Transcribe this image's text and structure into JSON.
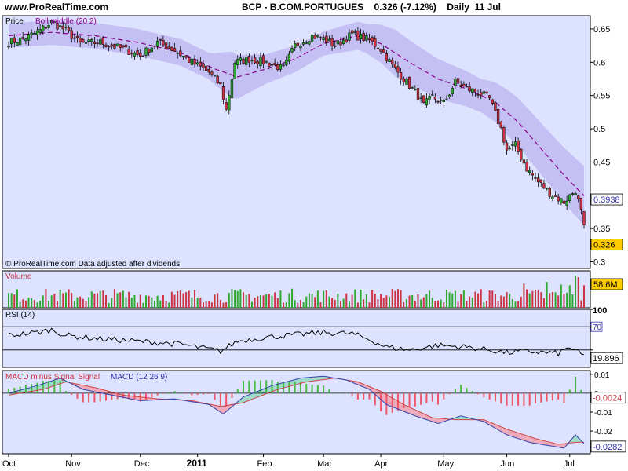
{
  "header": {
    "site": "www.ProRealTime.com",
    "title": "BCP - B.COM.PORTUGUES",
    "quote": "0.326 (-7.12%)",
    "period": "Daily",
    "date": "11 Jul"
  },
  "colors": {
    "panel_bg": "#dde3ff",
    "band_fill": "#c4c0f4",
    "up": "#2ea82e",
    "down": "#cc3344",
    "boll_middle": "#880088",
    "value_box": "#ffcc00",
    "macd_line": "#3344aa",
    "signal_line": "#cc4444",
    "hist_up": "#44bb44",
    "hist_down": "#ee5566"
  },
  "chart_data": [
    {
      "type": "candlestick",
      "panel": "price",
      "legend": [
        "Price",
        "Boll middle (20 2)"
      ],
      "footnote": "© ProRealTime.com  Data adjusted after dividends",
      "y_ticks": [
        0.65,
        0.6,
        0.55,
        0.5,
        0.45,
        0.35,
        0.3
      ],
      "y_tick_labels": [
        "0.65",
        "0.6",
        "0.55",
        "0.5",
        "0.45",
        "0.35",
        "0.3"
      ],
      "ylim": [
        0.29,
        0.67
      ],
      "value_tags": [
        {
          "value": 0.3938,
          "label": "0.3938"
        },
        {
          "value": 0.326,
          "label": "0.326"
        }
      ],
      "x_labels": [
        "Oct",
        "Nov",
        "Dec",
        "2011",
        "Feb",
        "Mar",
        "Apr",
        "May",
        "Jun",
        "Jul"
      ],
      "x_label_pos": [
        0,
        22,
        46,
        66,
        89,
        110,
        130,
        152,
        174,
        196
      ],
      "x_bold_label": "2011",
      "num_bars": 202,
      "close_keypoints": [
        [
          0,
          0.63
        ],
        [
          5,
          0.635
        ],
        [
          10,
          0.645
        ],
        [
          15,
          0.66
        ],
        [
          20,
          0.648
        ],
        [
          25,
          0.628
        ],
        [
          32,
          0.63
        ],
        [
          40,
          0.62
        ],
        [
          46,
          0.61
        ],
        [
          52,
          0.63
        ],
        [
          58,
          0.618
        ],
        [
          64,
          0.6
        ],
        [
          70,
          0.585
        ],
        [
          74,
          0.565
        ],
        [
          76,
          0.528
        ],
        [
          79,
          0.6
        ],
        [
          84,
          0.605
        ],
        [
          90,
          0.6
        ],
        [
          96,
          0.59
        ],
        [
          100,
          0.625
        ],
        [
          106,
          0.64
        ],
        [
          110,
          0.635
        ],
        [
          114,
          0.625
        ],
        [
          120,
          0.642
        ],
        [
          126,
          0.633
        ],
        [
          130,
          0.62
        ],
        [
          134,
          0.595
        ],
        [
          138,
          0.575
        ],
        [
          142,
          0.555
        ],
        [
          145,
          0.535
        ],
        [
          148,
          0.548
        ],
        [
          152,
          0.538
        ],
        [
          156,
          0.57
        ],
        [
          160,
          0.56
        ],
        [
          164,
          0.555
        ],
        [
          168,
          0.545
        ],
        [
          172,
          0.5
        ],
        [
          174,
          0.468
        ],
        [
          177,
          0.475
        ],
        [
          181,
          0.44
        ],
        [
          185,
          0.42
        ],
        [
          190,
          0.4
        ],
        [
          194,
          0.39
        ],
        [
          198,
          0.408
        ],
        [
          200,
          0.375
        ],
        [
          202,
          0.326
        ]
      ],
      "boll_keypoints": [
        [
          0,
          0.64
        ],
        [
          15,
          0.645
        ],
        [
          30,
          0.64
        ],
        [
          45,
          0.63
        ],
        [
          60,
          0.615
        ],
        [
          72,
          0.59
        ],
        [
          80,
          0.578
        ],
        [
          90,
          0.59
        ],
        [
          100,
          0.605
        ],
        [
          110,
          0.628
        ],
        [
          122,
          0.64
        ],
        [
          130,
          0.628
        ],
        [
          140,
          0.6
        ],
        [
          150,
          0.575
        ],
        [
          160,
          0.56
        ],
        [
          170,
          0.54
        ],
        [
          178,
          0.51
        ],
        [
          186,
          0.47
        ],
        [
          194,
          0.43
        ],
        [
          202,
          0.395
        ]
      ],
      "band_width_keypoints": [
        [
          0,
          0.018
        ],
        [
          40,
          0.02
        ],
        [
          70,
          0.02
        ],
        [
          78,
          0.035
        ],
        [
          90,
          0.022
        ],
        [
          110,
          0.018
        ],
        [
          125,
          0.022
        ],
        [
          135,
          0.035
        ],
        [
          150,
          0.03
        ],
        [
          165,
          0.025
        ],
        [
          175,
          0.035
        ],
        [
          190,
          0.04
        ],
        [
          202,
          0.045
        ]
      ]
    },
    {
      "type": "bar",
      "panel": "volume",
      "title": "Volume",
      "last_value_label": "58.6M",
      "spike_bars": [
        [
          180,
          0.75
        ],
        [
          188,
          0.8
        ],
        [
          193,
          0.72
        ],
        [
          196,
          0.7
        ],
        [
          198,
          1.0
        ],
        [
          199,
          0.95
        ],
        [
          201,
          0.7
        ]
      ]
    },
    {
      "type": "line",
      "panel": "rsi",
      "title": "RSI (14)",
      "y_ticks": [
        100,
        70,
        30
      ],
      "y_tick_labels": [
        "100",
        "70",
        ""
      ],
      "ylim": [
        0,
        100
      ],
      "reference_lines": [
        70,
        30
      ],
      "last_value_label": "19.896",
      "keypoints": [
        [
          0,
          55
        ],
        [
          10,
          60
        ],
        [
          15,
          65
        ],
        [
          20,
          55
        ],
        [
          30,
          50
        ],
        [
          45,
          45
        ],
        [
          60,
          40
        ],
        [
          74,
          28
        ],
        [
          80,
          45
        ],
        [
          90,
          52
        ],
        [
          100,
          56
        ],
        [
          110,
          60
        ],
        [
          120,
          58
        ],
        [
          126,
          48
        ],
        [
          132,
          35
        ],
        [
          140,
          30
        ],
        [
          150,
          38
        ],
        [
          160,
          35
        ],
        [
          168,
          30
        ],
        [
          174,
          25
        ],
        [
          180,
          28
        ],
        [
          186,
          26
        ],
        [
          192,
          24
        ],
        [
          196,
          35
        ],
        [
          200,
          22
        ],
        [
          202,
          20
        ]
      ]
    },
    {
      "type": "line",
      "panel": "macd",
      "title": "MACD minus Signal Signal",
      "title_secondary": "MACD (12 26 9)",
      "y_ticks": [
        0.01,
        0,
        -0.01,
        -0.02
      ],
      "y_tick_labels": [
        "0.01",
        "0",
        "-0.01",
        "-0.02"
      ],
      "ylim": [
        -0.032,
        0.012
      ],
      "value_tags": [
        {
          "value": -0.0024,
          "label": "-0.0024"
        },
        {
          "value": -0.0282,
          "label": "-0.0282"
        }
      ],
      "macd_keypoints": [
        [
          0,
          0
        ],
        [
          10,
          0.004
        ],
        [
          18,
          0.008
        ],
        [
          26,
          0.002
        ],
        [
          36,
          -0.001
        ],
        [
          46,
          -0.004
        ],
        [
          58,
          -0.003
        ],
        [
          70,
          -0.006
        ],
        [
          75,
          -0.011
        ],
        [
          82,
          -0.002
        ],
        [
          92,
          0.004
        ],
        [
          102,
          0.008
        ],
        [
          110,
          0.009
        ],
        [
          118,
          0.007
        ],
        [
          126,
          0.002
        ],
        [
          132,
          -0.006
        ],
        [
          142,
          -0.012
        ],
        [
          150,
          -0.016
        ],
        [
          158,
          -0.012
        ],
        [
          166,
          -0.015
        ],
        [
          174,
          -0.022
        ],
        [
          182,
          -0.026
        ],
        [
          190,
          -0.028
        ],
        [
          194,
          -0.029
        ],
        [
          198,
          -0.022
        ],
        [
          202,
          -0.0282
        ]
      ],
      "signal_keypoints": [
        [
          0,
          -0.001
        ],
        [
          12,
          0.002
        ],
        [
          20,
          0.006
        ],
        [
          30,
          0.003
        ],
        [
          40,
          -0.001
        ],
        [
          52,
          -0.003
        ],
        [
          64,
          -0.004
        ],
        [
          74,
          -0.007
        ],
        [
          82,
          -0.005
        ],
        [
          94,
          0.002
        ],
        [
          104,
          0.006
        ],
        [
          114,
          0.008
        ],
        [
          122,
          0.006
        ],
        [
          130,
          0.001
        ],
        [
          138,
          -0.006
        ],
        [
          148,
          -0.013
        ],
        [
          156,
          -0.014
        ],
        [
          166,
          -0.014
        ],
        [
          174,
          -0.019
        ],
        [
          184,
          -0.024
        ],
        [
          192,
          -0.027
        ],
        [
          198,
          -0.026
        ],
        [
          202,
          -0.0258
        ]
      ]
    }
  ]
}
